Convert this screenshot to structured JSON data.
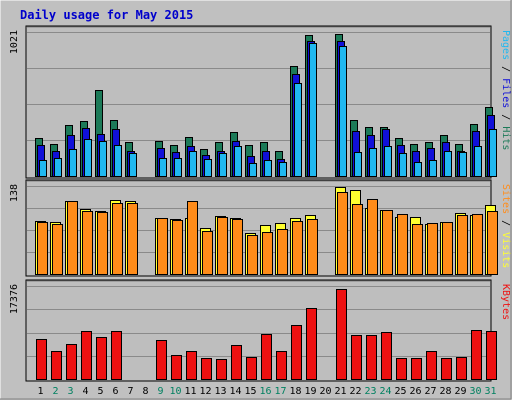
{
  "title": "Daily usage for May 2015",
  "colors": {
    "background": "#c0c0c0",
    "panel": "#bebebe",
    "title": "#0000cc",
    "hits": "#1c7a58",
    "files": "#1010d8",
    "pages": "#20b8f0",
    "visits": "#ffff30",
    "sites": "#ff8c1a",
    "kbytes": "#ee1111",
    "weekend_label": "#008060"
  },
  "chart_data": [
    {
      "type": "bar",
      "id": "hits-files-pages",
      "ymax_label": "1021",
      "ylim": [
        0,
        1021
      ],
      "legend": [
        "Pages",
        "Files",
        "Hits"
      ],
      "categories": [
        "1",
        "2",
        "3",
        "4",
        "5",
        "6",
        "7",
        "8",
        "9",
        "10",
        "11",
        "12",
        "13",
        "14",
        "15",
        "16",
        "17",
        "18",
        "19",
        "20",
        "21",
        "22",
        "23",
        "24",
        "25",
        "26",
        "27",
        "28",
        "29",
        "30",
        "31"
      ],
      "series": [
        {
          "name": "Hits",
          "color": "hits",
          "values": [
            270,
            230,
            360,
            390,
            610,
            400,
            240,
            0,
            250,
            220,
            280,
            190,
            240,
            310,
            220,
            240,
            180,
            780,
            1000,
            0,
            1010,
            400,
            350,
            350,
            270,
            230,
            240,
            290,
            230,
            370,
            490
          ]
        },
        {
          "name": "Files",
          "color": "files",
          "values": [
            220,
            180,
            290,
            340,
            300,
            330,
            180,
            0,
            200,
            170,
            210,
            150,
            180,
            250,
            140,
            180,
            120,
            720,
            960,
            0,
            960,
            320,
            290,
            330,
            220,
            180,
            200,
            240,
            180,
            320,
            430
          ]
        },
        {
          "name": "Pages",
          "color": "pages",
          "values": [
            110,
            130,
            190,
            260,
            250,
            220,
            160,
            0,
            130,
            130,
            180,
            120,
            160,
            210,
            90,
            110,
            100,
            660,
            940,
            0,
            920,
            170,
            200,
            210,
            160,
            100,
            110,
            180,
            170,
            210,
            330
          ]
        }
      ]
    },
    {
      "type": "bar",
      "id": "visits-sites",
      "ymax_label": "138",
      "ylim": [
        0,
        138
      ],
      "legend": [
        "Sites",
        "Visits"
      ],
      "categories": [
        "1",
        "2",
        "3",
        "4",
        "5",
        "6",
        "7",
        "8",
        "9",
        "10",
        "11",
        "12",
        "13",
        "14",
        "15",
        "16",
        "17",
        "18",
        "19",
        "20",
        "21",
        "22",
        "23",
        "24",
        "25",
        "26",
        "27",
        "28",
        "29",
        "30",
        "31"
      ],
      "series": [
        {
          "name": "Visits",
          "color": "visits",
          "values": [
            83,
            81,
            115,
            102,
            99,
            116,
            115,
            0,
            88,
            87,
            88,
            72,
            91,
            88,
            64,
            77,
            80,
            88,
            92,
            0,
            137,
            132,
            103,
            101,
            90,
            90,
            79,
            81,
            96,
            92,
            108
          ]
        },
        {
          "name": "Sites",
          "color": "sites",
          "values": [
            81,
            79,
            114,
            99,
            97,
            112,
            112,
            0,
            88,
            85,
            114,
            68,
            89,
            87,
            61,
            66,
            70,
            83,
            86,
            0,
            128,
            110,
            117,
            100,
            94,
            79,
            80,
            81,
            93,
            94,
            99
          ]
        }
      ]
    },
    {
      "type": "bar",
      "id": "kbytes",
      "ymax_label": "17376",
      "ylim": [
        0,
        17376
      ],
      "legend": [
        "KBytes"
      ],
      "categories": [
        "1",
        "2",
        "3",
        "4",
        "5",
        "6",
        "7",
        "8",
        "9",
        "10",
        "11",
        "12",
        "13",
        "14",
        "15",
        "16",
        "17",
        "18",
        "19",
        "20",
        "21",
        "22",
        "23",
        "24",
        "25",
        "26",
        "27",
        "28",
        "29",
        "30",
        "31"
      ],
      "series": [
        {
          "name": "KBytes",
          "color": "kbytes",
          "values": [
            7500,
            5200,
            6500,
            9000,
            7900,
            9000,
            0,
            0,
            7200,
            4400,
            5300,
            3900,
            3800,
            6300,
            4100,
            8500,
            5200,
            10100,
            13300,
            0,
            16900,
            8200,
            8300,
            8800,
            3900,
            3900,
            5200,
            3900,
            4100,
            9200,
            9000
          ]
        }
      ]
    }
  ],
  "x_labels": [
    "1",
    "2",
    "3",
    "4",
    "5",
    "6",
    "7",
    "8",
    "9",
    "10",
    "11",
    "12",
    "13",
    "14",
    "15",
    "16",
    "17",
    "18",
    "19",
    "20",
    "21",
    "22",
    "23",
    "24",
    "25",
    "26",
    "27",
    "28",
    "29",
    "30",
    "31"
  ],
  "weekend_days": [
    "2",
    "3",
    "9",
    "10",
    "16",
    "17",
    "23",
    "24",
    "30",
    "31"
  ]
}
